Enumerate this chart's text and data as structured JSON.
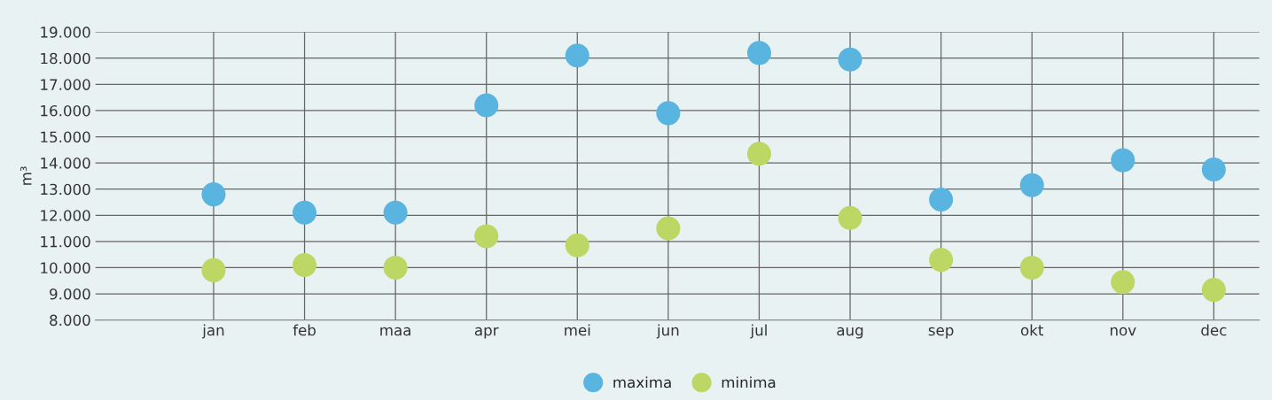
{
  "chart_data": {
    "type": "scatter",
    "ylabel": "m³",
    "categories": [
      "jan",
      "feb",
      "maa",
      "apr",
      "mei",
      "jun",
      "jul",
      "aug",
      "sep",
      "okt",
      "nov",
      "dec"
    ],
    "series": [
      {
        "name": "maxima",
        "color": "#5ab4e0",
        "values": [
          12800,
          12100,
          12100,
          16200,
          18100,
          15900,
          18200,
          17950,
          12600,
          13150,
          14100,
          13750
        ]
      },
      {
        "name": "minima",
        "color": "#bdd765",
        "values": [
          9900,
          10100,
          10000,
          11200,
          10850,
          11500,
          14350,
          11900,
          10300,
          10000,
          9450,
          9150
        ]
      }
    ],
    "ylim": [
      8000,
      19000
    ],
    "yticks": [
      {
        "value": 8000,
        "label": "8.000"
      },
      {
        "value": 9000,
        "label": "9.000"
      },
      {
        "value": 10000,
        "label": "10.000"
      },
      {
        "value": 11000,
        "label": "11.000"
      },
      {
        "value": 12000,
        "label": "12.000"
      },
      {
        "value": 13000,
        "label": "13.000"
      },
      {
        "value": 14000,
        "label": "14.000"
      },
      {
        "value": 15000,
        "label": "15.000"
      },
      {
        "value": 16000,
        "label": "16.000"
      },
      {
        "value": 17000,
        "label": "17.000"
      },
      {
        "value": 18000,
        "label": "18.000"
      },
      {
        "value": 19000,
        "label": "19.000"
      }
    ],
    "grid": true,
    "legend": "bottom",
    "marker": "circle"
  }
}
